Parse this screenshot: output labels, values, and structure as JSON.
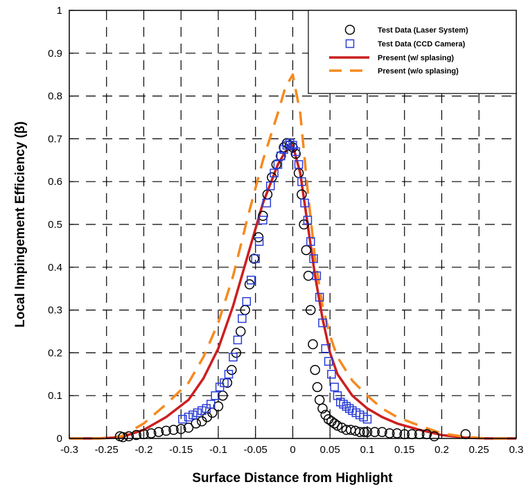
{
  "chart_data": {
    "type": "scatter",
    "title": "",
    "xlabel": "Surface Distance from Highlight",
    "ylabel": "Local Impingement Efficiency (β)",
    "xlim": [
      -0.3,
      0.3
    ],
    "ylim": [
      0,
      1
    ],
    "x_ticks": [
      "-0.3",
      "-0.25",
      "-0.2",
      "-0.15",
      "-0.1",
      "-0.05",
      "0",
      "0.05",
      "0.1",
      "0.15",
      "0.2",
      "0.25",
      "0.3"
    ],
    "y_ticks": [
      "0",
      "0.1",
      "0.2",
      "0.3",
      "0.4",
      "0.5",
      "0.6",
      "0.7",
      "0.8",
      "0.9",
      "1"
    ],
    "grid": "dashed",
    "legend_position": "top-right",
    "series": [
      {
        "name": "Test Data (Laser System)",
        "kind": "scatter",
        "marker": "circle",
        "color": "#000000",
        "x": [
          -0.232,
          -0.228,
          -0.22,
          -0.21,
          -0.2,
          -0.19,
          -0.18,
          -0.17,
          -0.16,
          -0.15,
          -0.14,
          -0.13,
          -0.122,
          -0.115,
          -0.108,
          -0.1,
          -0.094,
          -0.088,
          -0.082,
          -0.076,
          -0.07,
          -0.064,
          -0.058,
          -0.052,
          -0.046,
          -0.04,
          -0.034,
          -0.028,
          -0.022,
          -0.016,
          -0.012,
          -0.008,
          -0.004,
          0.0,
          0.004,
          0.008,
          0.012,
          0.015,
          0.018,
          0.021,
          0.024,
          0.027,
          0.03,
          0.033,
          0.036,
          0.04,
          0.044,
          0.048,
          0.052,
          0.056,
          0.06,
          0.066,
          0.072,
          0.078,
          0.084,
          0.09,
          0.096,
          0.1,
          0.11,
          0.12,
          0.13,
          0.14,
          0.15,
          0.16,
          0.17,
          0.18,
          0.19,
          0.232
        ],
        "y": [
          0.005,
          0.003,
          0.005,
          0.008,
          0.01,
          0.012,
          0.015,
          0.018,
          0.02,
          0.022,
          0.025,
          0.035,
          0.04,
          0.05,
          0.06,
          0.075,
          0.1,
          0.13,
          0.16,
          0.2,
          0.25,
          0.3,
          0.36,
          0.42,
          0.47,
          0.52,
          0.57,
          0.61,
          0.64,
          0.66,
          0.68,
          0.69,
          0.685,
          0.68,
          0.665,
          0.62,
          0.57,
          0.5,
          0.44,
          0.38,
          0.3,
          0.22,
          0.16,
          0.12,
          0.09,
          0.07,
          0.055,
          0.045,
          0.04,
          0.035,
          0.03,
          0.025,
          0.02,
          0.02,
          0.018,
          0.015,
          0.015,
          0.015,
          0.015,
          0.015,
          0.012,
          0.012,
          0.01,
          0.01,
          0.01,
          0.01,
          0.005,
          0.01
        ]
      },
      {
        "name": "Test Data (CCD Camera)",
        "kind": "scatter",
        "marker": "square",
        "color": "#2a3cd6",
        "x": [
          -0.148,
          -0.14,
          -0.134,
          -0.128,
          -0.122,
          -0.116,
          -0.11,
          -0.104,
          -0.098,
          -0.092,
          -0.086,
          -0.08,
          -0.074,
          -0.068,
          -0.062,
          -0.056,
          -0.05,
          -0.045,
          -0.04,
          -0.035,
          -0.03,
          -0.025,
          -0.02,
          -0.016,
          -0.012,
          -0.008,
          -0.004,
          0.0,
          0.004,
          0.008,
          0.012,
          0.016,
          0.02,
          0.024,
          0.028,
          0.032,
          0.036,
          0.04,
          0.044,
          0.048,
          0.052,
          0.056,
          0.06,
          0.064,
          0.068,
          0.072,
          0.076,
          0.08,
          0.085,
          0.09,
          0.095,
          0.1
        ],
        "y": [
          0.045,
          0.05,
          0.055,
          0.06,
          0.065,
          0.07,
          0.08,
          0.1,
          0.12,
          0.13,
          0.15,
          0.19,
          0.23,
          0.28,
          0.32,
          0.37,
          0.42,
          0.46,
          0.51,
          0.55,
          0.59,
          0.62,
          0.64,
          0.66,
          0.675,
          0.685,
          0.69,
          0.685,
          0.67,
          0.64,
          0.6,
          0.55,
          0.51,
          0.46,
          0.42,
          0.38,
          0.33,
          0.27,
          0.21,
          0.18,
          0.15,
          0.12,
          0.1,
          0.085,
          0.08,
          0.075,
          0.07,
          0.065,
          0.06,
          0.055,
          0.05,
          0.045
        ]
      },
      {
        "name": "Present (w/ splasing)",
        "kind": "line",
        "dash": "solid",
        "color": "#cc1f1f",
        "x": [
          -0.3,
          -0.26,
          -0.23,
          -0.2,
          -0.17,
          -0.14,
          -0.12,
          -0.1,
          -0.08,
          -0.06,
          -0.04,
          -0.02,
          -0.01,
          0.0,
          0.01,
          0.02,
          0.03,
          0.04,
          0.05,
          0.06,
          0.08,
          0.1,
          0.12,
          0.14,
          0.17,
          0.2,
          0.23,
          0.26,
          0.3
        ],
        "y": [
          0.0,
          0.0,
          0.003,
          0.02,
          0.05,
          0.09,
          0.14,
          0.21,
          0.31,
          0.43,
          0.55,
          0.64,
          0.67,
          0.685,
          0.62,
          0.5,
          0.38,
          0.28,
          0.2,
          0.15,
          0.1,
          0.07,
          0.05,
          0.035,
          0.02,
          0.008,
          0.002,
          0.0,
          0.0
        ]
      },
      {
        "name": "Present (w/o splasing)",
        "kind": "line",
        "dash": "dashed",
        "color": "#f58a1f",
        "x": [
          -0.3,
          -0.26,
          -0.23,
          -0.2,
          -0.17,
          -0.14,
          -0.12,
          -0.1,
          -0.08,
          -0.06,
          -0.04,
          -0.02,
          -0.01,
          0.0,
          0.01,
          0.02,
          0.03,
          0.04,
          0.05,
          0.06,
          0.08,
          0.1,
          0.12,
          0.14,
          0.17,
          0.2,
          0.23,
          0.26,
          0.3
        ],
        "y": [
          0.0,
          0.0,
          0.005,
          0.035,
          0.08,
          0.13,
          0.19,
          0.27,
          0.38,
          0.52,
          0.65,
          0.76,
          0.82,
          0.85,
          0.76,
          0.58,
          0.42,
          0.31,
          0.24,
          0.19,
          0.135,
          0.1,
          0.07,
          0.05,
          0.03,
          0.012,
          0.004,
          0.0,
          0.0
        ]
      }
    ]
  }
}
